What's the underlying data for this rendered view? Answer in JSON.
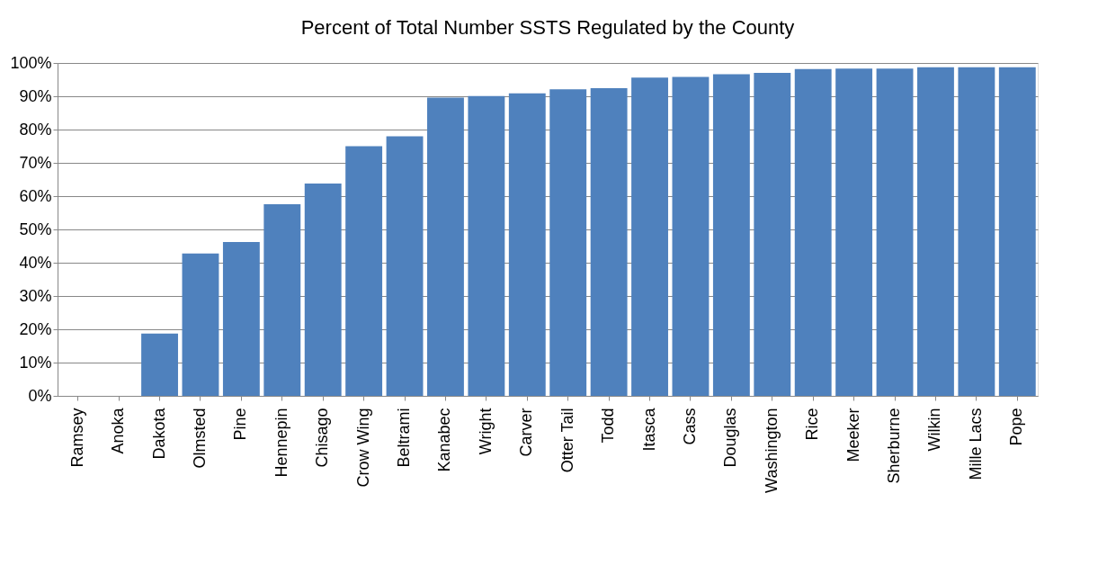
{
  "chart_data": {
    "type": "bar",
    "title": "Percent of Total Number SSTS Regulated by the County",
    "categories": [
      "Ramsey",
      "Anoka",
      "Dakota",
      "Olmsted",
      "Pine",
      "Hennepin",
      "Chisago",
      "Crow Wing",
      "Beltrami",
      "Kanabec",
      "Wright",
      "Carver",
      "Otter Tail",
      "Todd",
      "Itasca",
      "Cass",
      "Douglas",
      "Washington",
      "Rice",
      "Meeker",
      "Sherburne",
      "Wilkin",
      "Mille Lacs",
      "Pope"
    ],
    "values": [
      0,
      0,
      18.7,
      42.8,
      46.2,
      57.6,
      63.8,
      75,
      78,
      89.6,
      90.1,
      90.9,
      92.1,
      92.4,
      95.6,
      95.8,
      96.6,
      97.0,
      98.2,
      98.3,
      98.3,
      98.7,
      98.7,
      98.7
    ],
    "color": "#4f81bd",
    "ylim": [
      0,
      100
    ],
    "yticks": [
      {
        "value": 0,
        "label": "0%"
      },
      {
        "value": 10,
        "label": "10%"
      },
      {
        "value": 20,
        "label": "20%"
      },
      {
        "value": 30,
        "label": "30%"
      },
      {
        "value": 40,
        "label": "40%"
      },
      {
        "value": 50,
        "label": "50%"
      },
      {
        "value": 60,
        "label": "60%"
      },
      {
        "value": 70,
        "label": "70%"
      },
      {
        "value": 80,
        "label": "80%"
      },
      {
        "value": 90,
        "label": "90%"
      },
      {
        "value": 100,
        "label": "100%"
      }
    ],
    "grid": "y"
  }
}
